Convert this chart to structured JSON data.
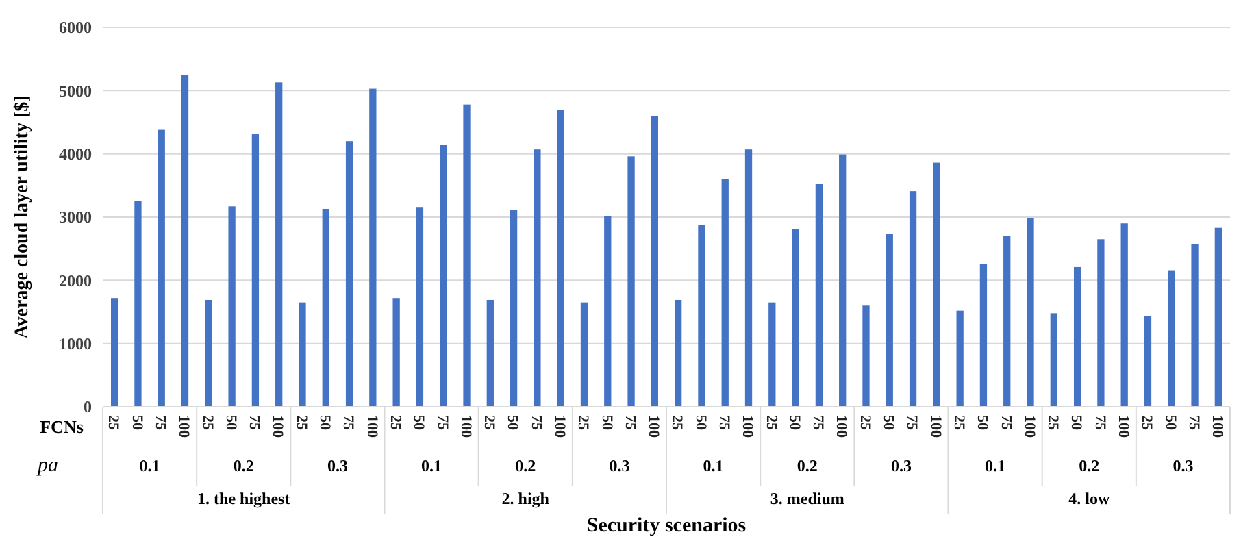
{
  "chart_data": {
    "type": "bar",
    "xlabel": "Security scenarios",
    "ylabel": "Average cloud layer utility [$]",
    "categories": [
      "25",
      "50",
      "75",
      "100",
      "25",
      "50",
      "75",
      "100",
      "25",
      "50",
      "75",
      "100",
      "25",
      "50",
      "75",
      "100",
      "25",
      "50",
      "75",
      "100",
      "25",
      "50",
      "75",
      "100",
      "25",
      "50",
      "75",
      "100",
      "25",
      "50",
      "75",
      "100",
      "25",
      "50",
      "75",
      "100",
      "25",
      "50",
      "75",
      "100",
      "25",
      "50",
      "75",
      "100",
      "25",
      "50",
      "75",
      "100"
    ],
    "values": [
      1720,
      3250,
      4380,
      5250,
      1690,
      3170,
      4310,
      5130,
      1650,
      3130,
      4200,
      5030,
      1720,
      3160,
      4140,
      4780,
      1690,
      3110,
      4070,
      4690,
      1650,
      3020,
      3960,
      4600,
      1690,
      2870,
      3600,
      4070,
      1650,
      2810,
      3520,
      3990,
      1600,
      2730,
      3410,
      3860,
      1520,
      2260,
      2700,
      2980,
      1480,
      2210,
      2650,
      2900,
      1440,
      2160,
      2570,
      2830
    ],
    "color": "#4472c4",
    "ylim": [
      0,
      6000
    ],
    "yticks": [
      0,
      1000,
      2000,
      3000,
      4000,
      5000,
      6000
    ],
    "grid": "y",
    "annotations": [
      "FCNs",
      "pa",
      "0.1",
      "0.2",
      "0.3",
      "0.1",
      "0.2",
      "0.3",
      "0.1",
      "0.2",
      "0.3",
      "0.1",
      "0.2",
      "0.3",
      "1. the highest",
      "2. high",
      "3. medium",
      "4. low"
    ]
  }
}
